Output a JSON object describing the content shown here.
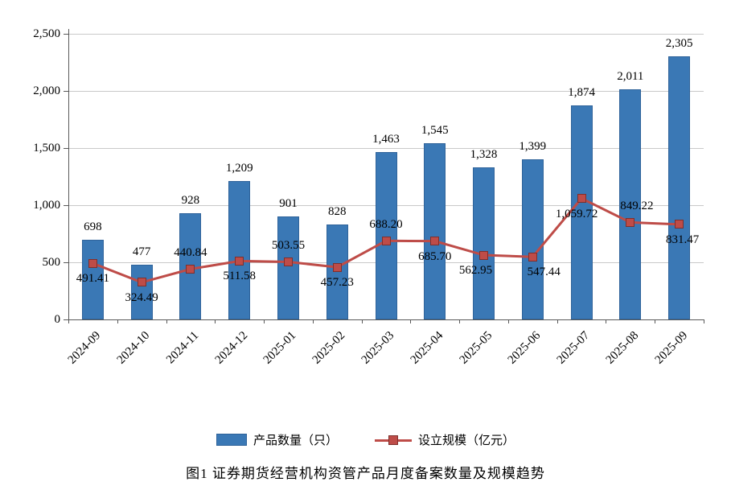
{
  "colors": {
    "bar": "#3a78b5",
    "bar_border": "#2f639a",
    "line": "#be4c48",
    "marker_fill": "#be4c48",
    "marker_border": "#7f2f2c",
    "grid": "#c9c9c9",
    "axis": "#595959",
    "text": "#000000",
    "bg": "#ffffff"
  },
  "legend": {
    "bar_label": "产品数量（只）",
    "line_label": "设立规模（亿元）"
  },
  "caption": "图1  证券期货经营机构资管产品月度备案数量及规模趋势",
  "chart_data": {
    "type": "bar+line",
    "title": "图1  证券期货经营机构资管产品月度备案数量及规模趋势",
    "categories": [
      "2024-09",
      "2024-10",
      "2024-11",
      "2024-12",
      "2025-01",
      "2025-02",
      "2025-03",
      "2025-04",
      "2025-05",
      "2025-06",
      "2025-07",
      "2025-08",
      "2025-09"
    ],
    "series": [
      {
        "name": "产品数量（只）",
        "type": "bar",
        "values": [
          698,
          477,
          928,
          1209,
          901,
          828,
          1463,
          1545,
          1328,
          1399,
          1874,
          2011,
          2305
        ],
        "labels": [
          "698",
          "477",
          "928",
          "1,209",
          "901",
          "828",
          "1,463",
          "1,545",
          "1,328",
          "1,399",
          "1,874",
          "2,011",
          "2,305"
        ]
      },
      {
        "name": "设立规模（亿元）",
        "type": "line",
        "values": [
          491.41,
          324.49,
          440.84,
          511.58,
          503.55,
          457.23,
          688.2,
          685.7,
          562.95,
          547.44,
          1059.72,
          849.22,
          831.47
        ],
        "labels": [
          "491.41",
          "324.49",
          "440.84",
          "511.58",
          "503.55",
          "457.23",
          "688.20",
          "685.70",
          "562.95",
          "547.44",
          "1,059.72",
          "849.22",
          "831.47"
        ],
        "label_side": [
          "below",
          "below",
          "above",
          "below",
          "above",
          "below",
          "above",
          "below",
          "below",
          "below",
          "below",
          "above",
          "below"
        ],
        "label_dx": [
          0,
          0,
          0,
          0,
          0,
          0,
          0,
          0,
          -10,
          14,
          -6,
          8,
          4
        ]
      }
    ],
    "ylim": [
      0,
      2500
    ],
    "ytick_step": 500,
    "ytick_labels": [
      "0",
      "500",
      "1,000",
      "1,500",
      "2,000",
      "2,500"
    ],
    "grid": true,
    "legend_position": "bottom"
  }
}
